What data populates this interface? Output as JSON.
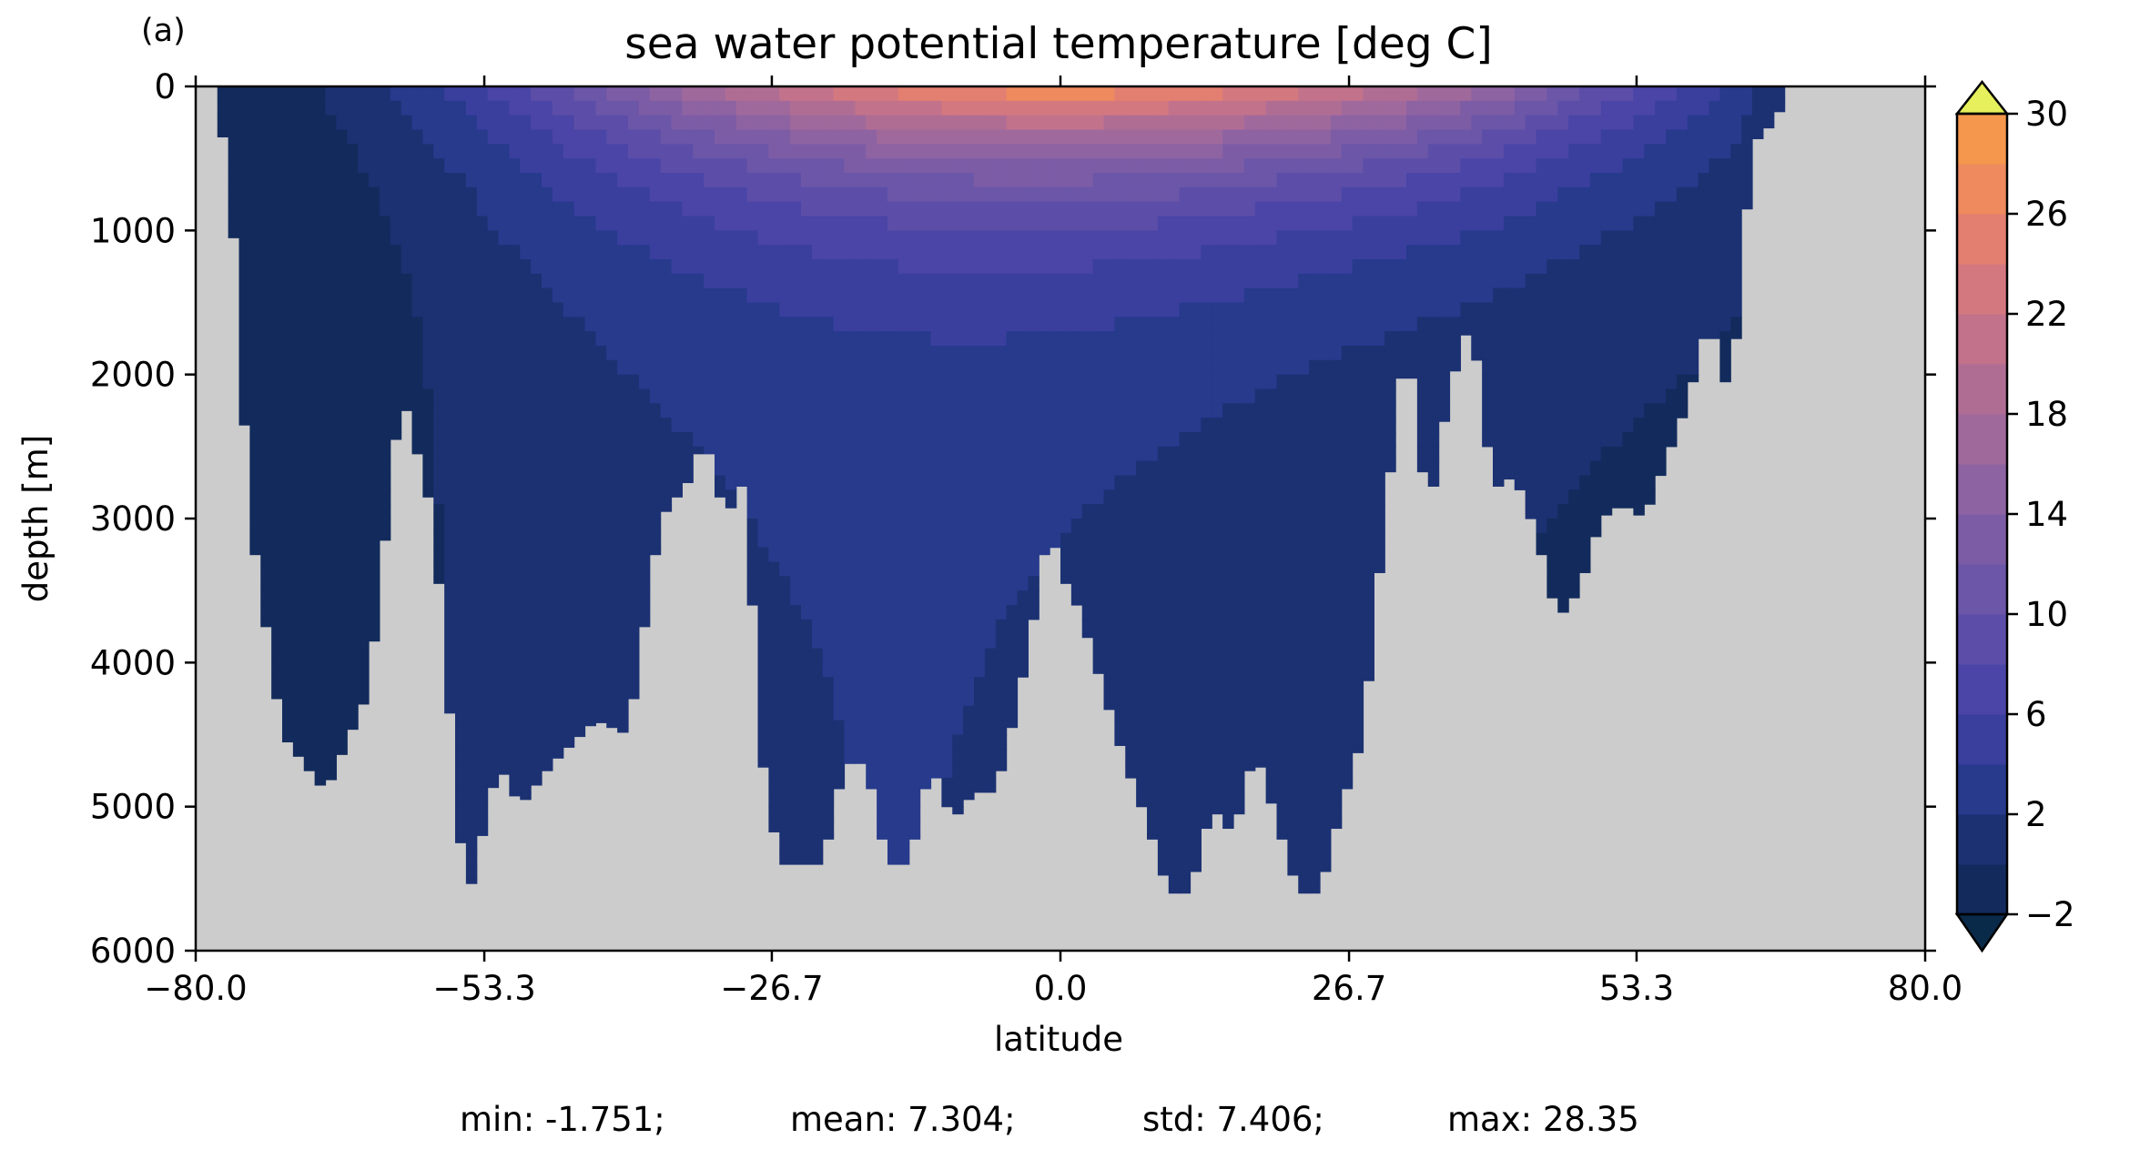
{
  "panel_label": "(a)",
  "stats": {
    "min": "min: -1.751;",
    "mean": "mean: 7.304;",
    "std": "std: 7.406;",
    "max": "max: 28.35"
  },
  "colors": {
    "land": "#cccccc",
    "bands": [
      "#0a2a4a",
      "#122b5c",
      "#1b3172",
      "#273a8c",
      "#3a3f9e",
      "#4a45a6",
      "#5c4ea8",
      "#6b56a8",
      "#7d5ca6",
      "#8e63a2",
      "#a0699c",
      "#b06d94",
      "#c2728b",
      "#d4787f",
      "#e37f70",
      "#ee8a5e",
      "#f5974c",
      "#f8a83f",
      "#f6bb3c",
      "#f0cc45",
      "#e8de54",
      "#e6ef5c"
    ]
  },
  "chart_data": {
    "type": "heatmap",
    "title": "sea water potential temperature [deg C]",
    "xlabel": "latitude",
    "ylabel": "depth [m]",
    "xlim": [
      -80.0,
      80.0
    ],
    "ylim": [
      6000,
      0
    ],
    "y_inverted": true,
    "xticks": [
      -80.0,
      -53.3,
      -26.7,
      0.0,
      26.7,
      53.3,
      80.0
    ],
    "xtick_labels": [
      "−80.0",
      "−53.3",
      "−26.7",
      "0.0",
      "26.7",
      "53.3",
      "80.0"
    ],
    "yticks": [
      0,
      1000,
      2000,
      3000,
      4000,
      5000,
      6000
    ],
    "ytick_labels": [
      "0",
      "1000",
      "2000",
      "3000",
      "4000",
      "5000",
      "6000"
    ],
    "colorbar": {
      "levels": [
        -2,
        0,
        2,
        4,
        6,
        8,
        10,
        12,
        14,
        16,
        18,
        20,
        22,
        24,
        26,
        28,
        30
      ],
      "ticks": [
        30,
        26,
        22,
        18,
        14,
        10,
        6,
        2,
        -2
      ],
      "tick_labels": [
        "30",
        "26",
        "22",
        "18",
        "14",
        "10",
        "6",
        "2",
        "−2"
      ],
      "extend": "both"
    },
    "surface_temperature_profile": {
      "lat": [
        -80,
        -76,
        -70,
        -62,
        -55,
        -48,
        -40,
        -32,
        -24,
        -16,
        -8,
        0,
        8,
        16,
        24,
        32,
        40,
        48,
        56,
        62,
        66,
        70
      ],
      "temp": [
        -1.8,
        -1.5,
        -0.5,
        2.0,
        5.0,
        9.0,
        14.0,
        18.5,
        22.5,
        25.5,
        27.5,
        28.3,
        27.5,
        25.5,
        23.0,
        20.0,
        16.0,
        11.0,
        7.0,
        4.0,
        1.0,
        -1.0
      ]
    },
    "bottom_depth_profile": {
      "lat": [
        -78,
        -77,
        -75,
        -72,
        -68,
        -64,
        -61,
        -58,
        -55,
        -52,
        -50,
        -47,
        -43,
        -40,
        -37,
        -34,
        -33,
        -31,
        -29,
        -28,
        -26,
        -24,
        -22,
        -20,
        -18,
        -16,
        -14,
        -12,
        -10,
        -8,
        -6,
        -4,
        -2,
        -1,
        0,
        1,
        2,
        4,
        6,
        8,
        10,
        12,
        14,
        16,
        18,
        20,
        22,
        24,
        26,
        28,
        30,
        32,
        34,
        36,
        38,
        40,
        42,
        44,
        46,
        48,
        50,
        52,
        54,
        56,
        58,
        60,
        62,
        64,
        66,
        67
      ],
      "depth": [
        300,
        400,
        3000,
        4500,
        4900,
        4200,
        2100,
        3000,
        5700,
        4700,
        5000,
        4700,
        4400,
        4500,
        3000,
        2700,
        2400,
        3000,
        2700,
        4500,
        5400,
        5400,
        5400,
        4700,
        4700,
        5400,
        5400,
        4700,
        5100,
        4900,
        4900,
        4300,
        3500,
        3000,
        3400,
        3500,
        3700,
        4200,
        4700,
        5100,
        5600,
        5600,
        5000,
        5200,
        4600,
        5100,
        5600,
        5600,
        5000,
        4500,
        3000,
        1700,
        3000,
        2100,
        1600,
        2800,
        2700,
        3100,
        3700,
        3500,
        3000,
        2900,
        3000,
        2600,
        2200,
        1600,
        2200,
        400,
        250,
        100
      ]
    }
  }
}
